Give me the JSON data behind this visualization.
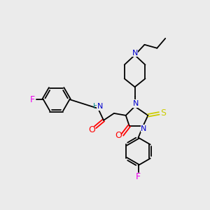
{
  "bg_color": "#ebebeb",
  "figsize": [
    3.0,
    3.0
  ],
  "dpi": 100,
  "atom_colors": {
    "N": "#0000cc",
    "O": "#ff0000",
    "F": "#ee00ee",
    "S": "#cccc00",
    "H": "#008888",
    "C": "#000000"
  },
  "lw": 1.3
}
